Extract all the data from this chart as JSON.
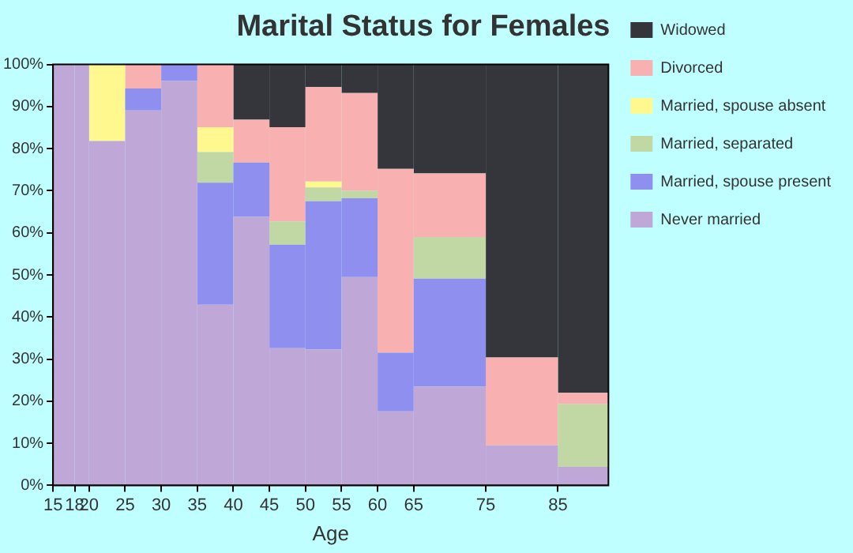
{
  "chart_data": {
    "type": "bar",
    "stacked": true,
    "title": "Marital Status for Females",
    "xlabel": "Age",
    "x": [
      16.5,
      19,
      22.5,
      27.5,
      32.5,
      37.5,
      42.5,
      47.5,
      52.5,
      57.5,
      62.5,
      70,
      80,
      88.5
    ],
    "xlim": [
      15,
      92
    ],
    "xticks": [
      15,
      18,
      20,
      25,
      30,
      35,
      40,
      45,
      50,
      55,
      60,
      65,
      75,
      85
    ],
    "ylim": [
      0,
      100
    ],
    "yticks": [
      {
        "value": 0,
        "label": "0%"
      },
      {
        "value": 10,
        "label": "10%"
      },
      {
        "value": 20,
        "label": "20%"
      },
      {
        "value": 30,
        "label": "30%"
      },
      {
        "value": 40,
        "label": "40%"
      },
      {
        "value": 50,
        "label": "50%"
      },
      {
        "value": 60,
        "label": "60%"
      },
      {
        "value": 70,
        "label": "70%"
      },
      {
        "value": 80,
        "label": "80%"
      },
      {
        "value": 90,
        "label": "90%"
      },
      {
        "value": 100,
        "label": "100%"
      }
    ],
    "legend": "right",
    "series": [
      {
        "name": "Never married",
        "color": "#bfa8d8",
        "values": [
          100,
          100,
          81.8,
          89.1,
          96.1,
          42.9,
          63.8,
          32.6,
          32.3,
          49.5,
          17.6,
          23.5,
          9.5,
          4.4
        ]
      },
      {
        "name": "Married, spouse present",
        "color": "#8f8fef",
        "values": [
          null,
          null,
          null,
          5.2,
          3.9,
          29.0,
          12.9,
          24.6,
          35.2,
          18.7,
          13.9,
          25.6,
          null,
          null
        ]
      },
      {
        "name": "Married, separated",
        "color": "#c2d8a4",
        "values": [
          null,
          null,
          null,
          null,
          null,
          7.3,
          null,
          5.5,
          3.3,
          1.8,
          null,
          9.9,
          null,
          14.9
        ]
      },
      {
        "name": "Married, spouse absent",
        "color": "#fef88f",
        "values": [
          null,
          null,
          18.2,
          null,
          null,
          5.9,
          null,
          null,
          1.4,
          null,
          null,
          null,
          null,
          null
        ]
      },
      {
        "name": "Divorced",
        "color": "#f8b0b0",
        "values": [
          null,
          null,
          null,
          5.7,
          null,
          14.9,
          10.2,
          22.4,
          22.4,
          23.2,
          43.7,
          15.1,
          20.9,
          2.7
        ]
      },
      {
        "name": "Widowed",
        "color": "#35363b",
        "values": [
          null,
          null,
          null,
          null,
          null,
          null,
          13.1,
          14.9,
          5.4,
          6.8,
          24.8,
          25.9,
          69.6,
          78.0
        ]
      }
    ]
  }
}
